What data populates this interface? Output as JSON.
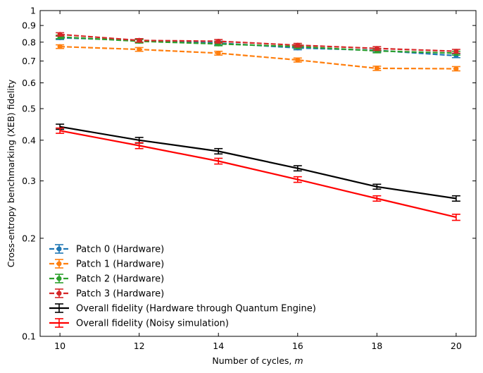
{
  "chart_data": {
    "type": "line",
    "title": "",
    "xlabel": "Number of cycles,",
    "xlabel_var": "m",
    "ylabel": "Cross-entropy benchmarking (XEB) fidelity",
    "yscale": "log",
    "xlim": [
      9.5,
      20.5
    ],
    "ylim": [
      0.1,
      1.0
    ],
    "xticks": [
      10,
      12,
      14,
      16,
      18,
      20
    ],
    "yticks": [
      0.1,
      0.2,
      0.3,
      0.4,
      0.5,
      0.6,
      0.7,
      0.8,
      0.9,
      1
    ],
    "ytick_labels": [
      "0.1",
      "0.2",
      "0.3",
      "0.4",
      "0.5",
      "0.6",
      "0.7",
      "0.8",
      "0.9",
      "1"
    ],
    "grid": false,
    "legend_position": "lower-left",
    "x": [
      10,
      12,
      14,
      16,
      18,
      20
    ],
    "series": [
      {
        "name": "Patch 0 (Hardware)",
        "color": "#1f77b4",
        "linestyle": "dashed",
        "marker": "circle",
        "values": [
          0.825,
          0.81,
          0.795,
          0.768,
          0.755,
          0.727
        ],
        "err": [
          0.01,
          0.01,
          0.01,
          0.01,
          0.01,
          0.01
        ]
      },
      {
        "name": "Patch 1 (Hardware)",
        "color": "#ff7f0e",
        "linestyle": "dashed",
        "marker": "circle",
        "values": [
          0.775,
          0.76,
          0.74,
          0.705,
          0.665,
          0.663
        ],
        "err": [
          0.01,
          0.01,
          0.01,
          0.01,
          0.01,
          0.01
        ]
      },
      {
        "name": "Patch 2 (Hardware)",
        "color": "#2ca02c",
        "linestyle": "dashed",
        "marker": "circle",
        "values": [
          0.83,
          0.805,
          0.79,
          0.775,
          0.752,
          0.74
        ],
        "err": [
          0.01,
          0.01,
          0.01,
          0.01,
          0.01,
          0.01
        ]
      },
      {
        "name": "Patch 3 (Hardware)",
        "color": "#d62728",
        "linestyle": "dashed",
        "marker": "circle",
        "values": [
          0.845,
          0.81,
          0.805,
          0.783,
          0.765,
          0.75
        ],
        "err": [
          0.01,
          0.01,
          0.01,
          0.01,
          0.01,
          0.01
        ]
      },
      {
        "name": "Overall fidelity (Hardware through Quantum Engine)",
        "color": "#000000",
        "linestyle": "solid",
        "marker": "none",
        "values": [
          0.44,
          0.4,
          0.37,
          0.328,
          0.288,
          0.265
        ],
        "err": [
          0.008,
          0.008,
          0.007,
          0.006,
          0.005,
          0.005
        ]
      },
      {
        "name": "Overall fidelity (Noisy simulation)",
        "color": "#ff0000",
        "linestyle": "solid",
        "marker": "none",
        "values": [
          0.428,
          0.385,
          0.345,
          0.303,
          0.265,
          0.232
        ],
        "err": [
          0.008,
          0.008,
          0.007,
          0.006,
          0.005,
          0.005
        ]
      }
    ]
  }
}
